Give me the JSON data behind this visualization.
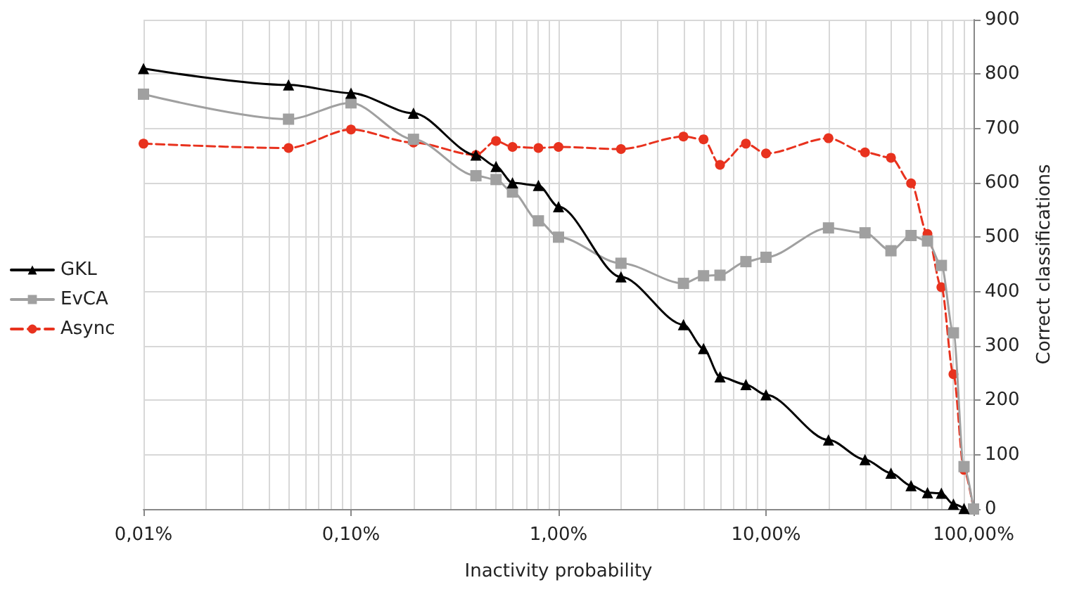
{
  "chart_data": {
    "type": "line",
    "xlabel": "Inactivity probability",
    "ylabel": "Correct classifications",
    "log": "x",
    "grid": true,
    "legend": "left",
    "xlim": [
      0.01,
      100
    ],
    "xticks": [
      {
        "value": 0.01,
        "label": "0,01%"
      },
      {
        "value": 0.1,
        "label": "0,10%"
      },
      {
        "value": 1,
        "label": "1,00%"
      },
      {
        "value": 10,
        "label": "10,00%"
      },
      {
        "value": 100,
        "label": "100,00%"
      }
    ],
    "ylim": [
      0,
      900
    ],
    "yticks": [
      0,
      100,
      200,
      300,
      400,
      500,
      600,
      700,
      800,
      900
    ],
    "x": [
      0.01,
      0.05,
      0.1,
      0.2,
      0.4,
      0.5,
      0.6,
      0.8,
      1,
      2,
      4,
      5,
      6,
      8,
      10,
      20,
      30,
      40,
      50,
      60,
      70,
      80,
      90,
      100
    ],
    "series": [
      {
        "name": "GKL",
        "color": "#000000",
        "marker": "triangle",
        "line_style": "solid",
        "x": [
          0.01,
          0.05,
          0.1,
          0.2,
          0.4,
          0.5,
          0.6,
          0.8,
          1,
          2,
          4,
          5,
          6,
          8,
          10,
          20,
          30,
          40,
          50,
          60,
          70,
          80,
          90
        ],
        "values": [
          810,
          780,
          765,
          728,
          651,
          630,
          600,
          595,
          556,
          427,
          339,
          295,
          243,
          229,
          210,
          127,
          91,
          66,
          43,
          30,
          29,
          9,
          1
        ]
      },
      {
        "name": "EvCA",
        "color": "#a0a0a0",
        "marker": "square",
        "line_style": "solid",
        "values": [
          763,
          717,
          747,
          680,
          613,
          606,
          583,
          530,
          500,
          452,
          415,
          429,
          430,
          455,
          463,
          517,
          508,
          475,
          503,
          493,
          448,
          324,
          78,
          0
        ]
      },
      {
        "name": "Async",
        "color": "#e8321e",
        "marker": "circle",
        "line_style": "dashed",
        "values": [
          672,
          664,
          698,
          674,
          651,
          677,
          666,
          664,
          666,
          662,
          685,
          680,
          633,
          672,
          654,
          682,
          656,
          646,
          599,
          506,
          408,
          248,
          72,
          0
        ]
      }
    ]
  }
}
